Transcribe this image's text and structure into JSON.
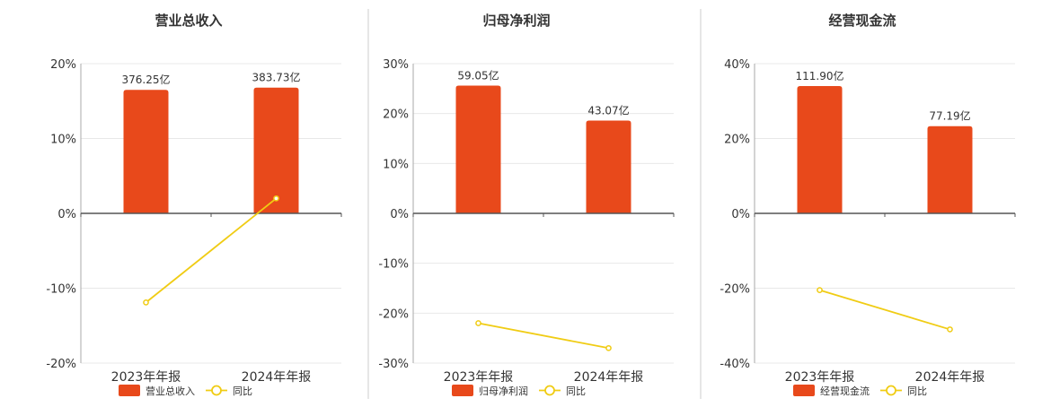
{
  "chart_data": [
    {
      "type": "bar",
      "title": "营业总收入",
      "categories": [
        "2023年年报",
        "2024年年报"
      ],
      "ylim": [
        -20,
        20
      ],
      "yticks": [
        20,
        10,
        0,
        -10,
        -20
      ],
      "tick_labels": [
        "20%",
        "10%",
        "0%",
        "-10%",
        "-20%"
      ],
      "series": [
        {
          "name": "营业总收入",
          "kind": "bar",
          "values": [
            16.5,
            16.8
          ],
          "labels": [
            "376.25亿",
            "383.73亿"
          ]
        },
        {
          "name": "同比",
          "kind": "line",
          "values": [
            -11.9,
            2.0
          ]
        }
      ],
      "grid": true,
      "legend": "bottom"
    },
    {
      "type": "bar",
      "title": "归母净利润",
      "categories": [
        "2023年年报",
        "2024年年报"
      ],
      "ylim": [
        -30,
        30
      ],
      "yticks": [
        30,
        20,
        10,
        0,
        -10,
        -20,
        -30
      ],
      "tick_labels": [
        "30%",
        "20%",
        "10%",
        "0%",
        "-10%",
        "-20%",
        "-30%"
      ],
      "series": [
        {
          "name": "归母净利润",
          "kind": "bar",
          "values": [
            25.6,
            18.6
          ],
          "labels": [
            "59.05亿",
            "43.07亿"
          ]
        },
        {
          "name": "同比",
          "kind": "line",
          "values": [
            -22.0,
            -27.0
          ]
        }
      ],
      "grid": true,
      "legend": "bottom"
    },
    {
      "type": "bar",
      "title": "经营现金流",
      "categories": [
        "2023年年报",
        "2024年年报"
      ],
      "ylim": [
        -40,
        40
      ],
      "yticks": [
        40,
        20,
        0,
        -20,
        -40
      ],
      "tick_labels": [
        "40%",
        "20%",
        "0%",
        "-20%",
        "-40%"
      ],
      "series": [
        {
          "name": "经营现金流",
          "kind": "bar",
          "values": [
            34.0,
            23.3
          ],
          "labels": [
            "111.90亿",
            "77.19亿"
          ]
        },
        {
          "name": "同比",
          "kind": "line",
          "values": [
            -20.5,
            -31.0
          ]
        }
      ],
      "grid": true,
      "legend": "bottom"
    }
  ],
  "colors": {
    "bar": "#e8491b",
    "line": "#f0cc14",
    "grid": "#e8e8e8",
    "axis": "#555555",
    "divider": "#cccccc",
    "text": "#333333"
  }
}
